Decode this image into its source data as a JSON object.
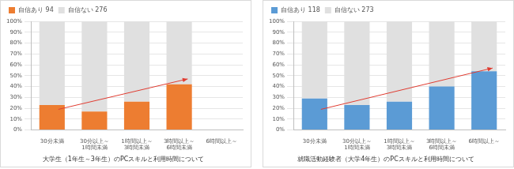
{
  "chart_data": [
    {
      "type": "bar",
      "title": "大学生（1年生～3年生）のPCスキルと利用時間について",
      "categories": [
        "30分未満",
        "30分以上～\n1時間未満",
        "1時間以上～\n3時間未満",
        "3時間以上～\n6時間未満",
        "6時間以上～"
      ],
      "series": [
        {
          "name": "自信あり 94",
          "color": "#ed7d31",
          "values": [
            23,
            17,
            26,
            42,
            0
          ]
        },
        {
          "name": "自信ない 276",
          "color": "#e0e0e0",
          "values": [
            77,
            83,
            74,
            58,
            0
          ]
        }
      ],
      "stacked": true,
      "ylim": [
        0,
        100
      ],
      "yticks": [
        {
          "value": 0,
          "label": "0%"
        },
        {
          "value": 10,
          "label": "10%"
        },
        {
          "value": 20,
          "label": "20%"
        },
        {
          "value": 30,
          "label": "30%"
        },
        {
          "value": 40,
          "label": "40%"
        },
        {
          "value": 50,
          "label": "50%"
        },
        {
          "value": 60,
          "label": "60%"
        },
        {
          "value": 70,
          "label": "70%"
        },
        {
          "value": 80,
          "label": "80%"
        },
        {
          "value": 90,
          "label": "90%"
        },
        {
          "value": 100,
          "label": "100%"
        }
      ],
      "grid": true,
      "legend": "top"
    },
    {
      "type": "bar",
      "title": "就職活動経験者（大学4年生）のPCスキルと利用時間について",
      "categories": [
        "30分未満",
        "30分以上～\n1時間未満",
        "1時間以上～\n3時間未満",
        "3時間以上～\n6時間未満",
        "6時間以上～"
      ],
      "series": [
        {
          "name": "自信あり 118",
          "color": "#5b9bd5",
          "values": [
            29,
            23,
            26,
            40,
            54
          ]
        },
        {
          "name": "自信ない 273",
          "color": "#e0e0e0",
          "values": [
            71,
            77,
            74,
            60,
            46
          ]
        }
      ],
      "stacked": true,
      "ylim": [
        0,
        100
      ],
      "yticks": [
        {
          "value": 0,
          "label": "0%"
        },
        {
          "value": 10,
          "label": "10%"
        },
        {
          "value": 20,
          "label": "20%"
        },
        {
          "value": 30,
          "label": "30%"
        },
        {
          "value": 40,
          "label": "40%"
        },
        {
          "value": 50,
          "label": "50%"
        },
        {
          "value": 60,
          "label": "60%"
        },
        {
          "value": 70,
          "label": "70%"
        },
        {
          "value": 80,
          "label": "80%"
        },
        {
          "value": 90,
          "label": "90%"
        },
        {
          "value": 100,
          "label": "100%"
        }
      ],
      "grid": true,
      "legend": "top"
    }
  ]
}
